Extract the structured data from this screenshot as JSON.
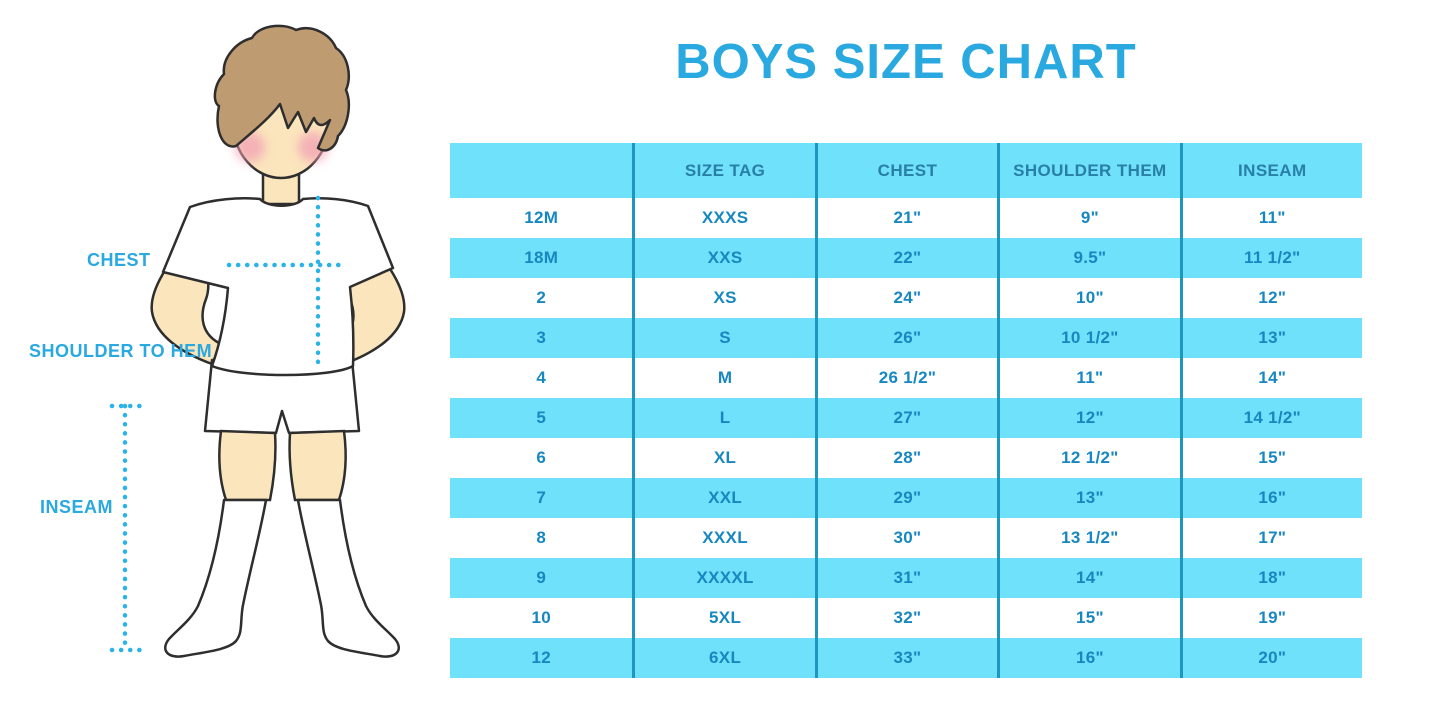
{
  "title": "BOYS SIZE CHART",
  "figure_labels": {
    "chest": "CHEST",
    "shoulder_to_hem": "SHOULDER TO HEM",
    "inseam": "INSEAM"
  },
  "chart_data": {
    "type": "table",
    "columns": [
      "",
      "SIZE TAG",
      "CHEST",
      "SHOULDER THEM",
      "INSEAM"
    ],
    "rows": [
      [
        "12M",
        "XXXS",
        "21\"",
        "9\"",
        "11\""
      ],
      [
        "18M",
        "XXS",
        "22\"",
        "9.5\"",
        "11 1/2\""
      ],
      [
        "2",
        "XS",
        "24\"",
        "10\"",
        "12\""
      ],
      [
        "3",
        "S",
        "26\"",
        "10 1/2\"",
        "13\""
      ],
      [
        "4",
        "M",
        "26 1/2\"",
        "11\"",
        "14\""
      ],
      [
        "5",
        "L",
        "27\"",
        "12\"",
        "14 1/2\""
      ],
      [
        "6",
        "XL",
        "28\"",
        "12 1/2\"",
        "15\""
      ],
      [
        "7",
        "XXL",
        "29\"",
        "13\"",
        "16\""
      ],
      [
        "8",
        "XXXL",
        "30\"",
        "13 1/2\"",
        "17\""
      ],
      [
        "9",
        "XXXXL",
        "31\"",
        "14\"",
        "18\""
      ],
      [
        "10",
        "5XL",
        "32\"",
        "15\"",
        "19\""
      ],
      [
        "12",
        "6XL",
        "33\"",
        "16\"",
        "20\""
      ]
    ],
    "title": "BOYS SIZE CHART",
    "row_striping": "white / cyan alternating, header cyan",
    "grid": "4 internal vertical dividers, no horizontal lines"
  },
  "colors": {
    "title_blue": "#29a9e0",
    "row_cyan": "#70e1fa",
    "divider_teal": "#1e96c0",
    "cell_text": "#1787c1",
    "header_text": "#287fa7",
    "label_blue": "#29a9e0",
    "dotted_blue": "#29b3e8",
    "skin": "#fbe5bc",
    "hair": "#bf9b72",
    "cheek": "#f2a0b5",
    "outline": "#2e2e2e"
  }
}
